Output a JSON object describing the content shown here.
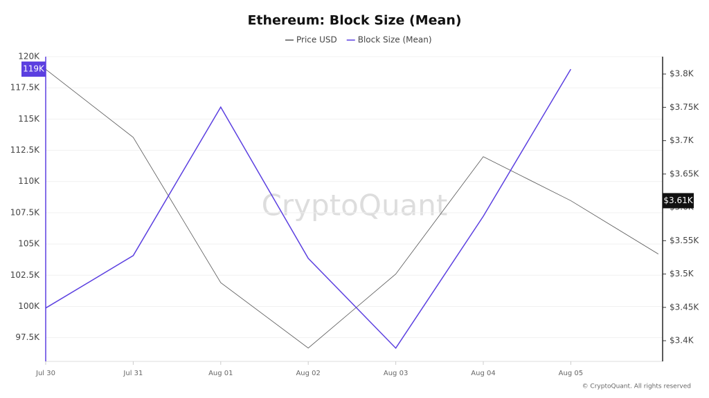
{
  "chart_data": {
    "type": "line",
    "title": "Ethereum: Block Size (Mean)",
    "watermark": "CryptoQuant",
    "copyright": "© CryptoQuant. All rights reserved",
    "categories": [
      "Jul 30",
      "Jul 31",
      "Aug 01",
      "Aug 02",
      "Aug 03",
      "Aug 04",
      "Aug 05",
      null
    ],
    "series": [
      {
        "name": "Price USD",
        "color": "#555555",
        "axis": "y2",
        "values": [
          3807,
          3705,
          3487,
          3389,
          3500,
          3676,
          3610,
          3530
        ],
        "value_labels": [
          null,
          null,
          null,
          null,
          null,
          null,
          "$3.61K",
          null
        ]
      },
      {
        "name": "Block Size (Mean)",
        "color": "#5b3fe0",
        "values": [
          99870,
          104070,
          115960,
          103850,
          96660,
          107220,
          119000,
          null
        ],
        "value_labels": [
          null,
          null,
          null,
          null,
          null,
          null,
          "119K",
          null
        ]
      }
    ],
    "ylim": [
      95600,
      120000
    ],
    "yticks": [
      {
        "value": 97500,
        "label": "97.5K"
      },
      {
        "value": 100000,
        "label": "100K"
      },
      {
        "value": 102500,
        "label": "102.5K"
      },
      {
        "value": 105000,
        "label": "105K"
      },
      {
        "value": 107500,
        "label": "107.5K"
      },
      {
        "value": 110000,
        "label": "110K"
      },
      {
        "value": 112500,
        "label": "112.5K"
      },
      {
        "value": 115000,
        "label": "115K"
      },
      {
        "value": 117500,
        "label": "117.5K"
      },
      {
        "value": 120000,
        "label": "120K"
      }
    ],
    "y2lim": [
      3369,
      3826
    ],
    "y2ticks": [
      {
        "value": 3400,
        "label": "$3.4K"
      },
      {
        "value": 3450,
        "label": "$3.45K"
      },
      {
        "value": 3500,
        "label": "$3.5K"
      },
      {
        "value": 3550,
        "label": "$3.55K"
      },
      {
        "value": 3600,
        "label": "$3.6K"
      },
      {
        "value": 3650,
        "label": "$3.65K"
      },
      {
        "value": 3700,
        "label": "$3.7K"
      },
      {
        "value": 3750,
        "label": "$3.75K"
      },
      {
        "value": 3800,
        "label": "$3.8K"
      }
    ],
    "grid": true
  }
}
